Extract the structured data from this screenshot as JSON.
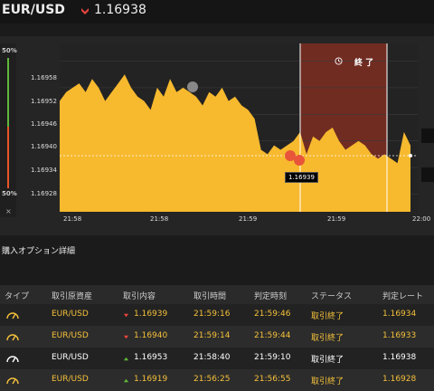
{
  "header": {
    "pair": "EUR/USD",
    "price": "1.16938",
    "price_direction": "down"
  },
  "sidebar": {
    "top_pct": "50%",
    "bottom_pct": "50%",
    "close": "×"
  },
  "chart": {
    "end_label": "終 了",
    "y_ticks": [
      "1.16958",
      "1.16952",
      "1.16946",
      "1.16940",
      "1.16934",
      "1.16928"
    ],
    "x_ticks": [
      "21:58",
      "21:58",
      "21:59",
      "21:59",
      "22:00"
    ],
    "current_tag": "1.16939"
  },
  "chart_data": {
    "type": "area",
    "ylim": [
      1.16924,
      1.16962
    ],
    "x_ticks": [
      "21:58",
      "21:58",
      "21:59",
      "21:59",
      "22:00"
    ],
    "series": [
      {
        "values": [
          1.16949,
          1.16951,
          1.16952,
          1.16953,
          1.16951,
          1.16954,
          1.16952,
          1.16949,
          1.16951,
          1.16953,
          1.16955,
          1.16952,
          1.1695,
          1.16949,
          1.16947,
          1.16952,
          1.1695,
          1.16954,
          1.16951,
          1.16952,
          1.16951,
          1.1695,
          1.16948,
          1.16951,
          1.1695,
          1.16952,
          1.16949,
          1.1695,
          1.16948,
          1.16947,
          1.16945,
          1.16938,
          1.16937,
          1.16939,
          1.16938,
          1.16939,
          1.1694,
          1.16942,
          1.16937,
          1.16941,
          1.1694,
          1.16942,
          1.16943,
          1.1694,
          1.16938,
          1.16939,
          1.1694,
          1.16939,
          1.16937,
          1.16936,
          1.16937,
          1.16936,
          1.16935,
          1.16942,
          1.16939
        ]
      }
    ],
    "color": "#f7b92e"
  },
  "section_title": "購入オプション詳細",
  "table": {
    "headers": [
      "タイプ",
      "取引原資産",
      "取引内容",
      "取引時間",
      "判定時刻",
      "ステータス",
      "判定レート"
    ],
    "rows": [
      {
        "asset": "EUR/USD",
        "dir": "down",
        "rate": "1.16939",
        "time": "21:59:16",
        "judge": "21:59:46",
        "status": "取引終了",
        "result": "1.16934",
        "bright": true
      },
      {
        "asset": "EUR/USD",
        "dir": "down",
        "rate": "1.16940",
        "time": "21:59:14",
        "judge": "21:59:44",
        "status": "取引終了",
        "result": "1.16933",
        "bright": true
      },
      {
        "asset": "EUR/USD",
        "dir": "up",
        "rate": "1.16953",
        "time": "21:58:40",
        "judge": "21:59:10",
        "status": "取引終了",
        "result": "1.16938",
        "bright": false
      },
      {
        "asset": "EUR/USD",
        "dir": "up",
        "rate": "1.16919",
        "time": "21:56:25",
        "judge": "21:56:55",
        "status": "取引終了",
        "result": "1.16928",
        "bright": true
      }
    ]
  }
}
